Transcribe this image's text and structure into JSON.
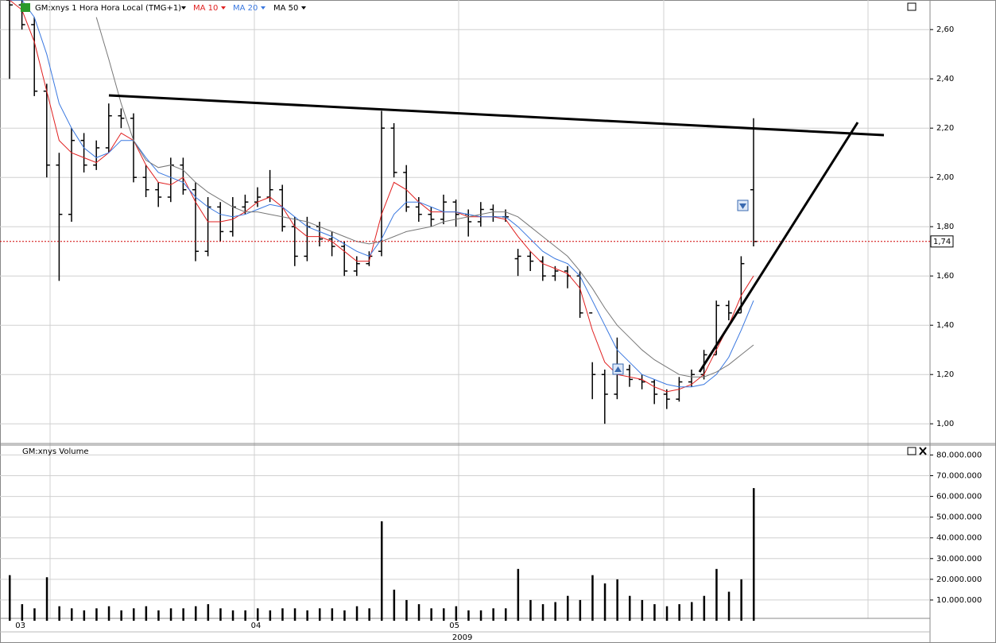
{
  "chart_data": [
    {
      "type": "ohlc",
      "title": "GM:xnys 1 Hora Hora Local (TMG+1)",
      "year_label": "2009",
      "categories": [
        null,
        "03",
        null,
        null,
        null,
        null,
        null,
        null,
        null,
        null,
        null,
        null,
        null,
        null,
        null,
        null,
        null,
        null,
        null,
        null,
        "04",
        null,
        null,
        null,
        null,
        null,
        null,
        null,
        null,
        null,
        null,
        null,
        null,
        null,
        null,
        null,
        "05",
        null,
        null,
        null,
        null,
        null,
        null,
        null,
        null,
        null,
        null,
        null,
        null,
        null,
        null,
        null,
        null,
        null,
        null,
        null,
        null,
        null,
        null,
        null,
        null
      ],
      "ohlc": {
        "open": [
          2.72,
          2.7,
          2.62,
          2.35,
          2.05,
          1.85,
          2.15,
          2.05,
          2.12,
          2.25,
          2.24,
          2.0,
          1.95,
          1.92,
          2.05,
          1.95,
          1.7,
          1.88,
          1.78,
          1.88,
          1.9,
          1.92,
          1.95,
          1.8,
          1.68,
          1.8,
          1.75,
          1.72,
          1.62,
          1.65,
          1.7,
          2.2,
          2.02,
          1.88,
          1.85,
          1.83,
          1.9,
          1.85,
          1.82,
          1.87,
          1.84,
          1.67,
          1.68,
          1.66,
          1.6,
          1.62,
          1.6,
          1.45,
          1.2,
          1.12,
          1.22,
          1.18,
          1.17,
          1.12,
          1.1,
          1.17,
          1.2,
          1.28,
          1.48,
          1.45,
          1.95
        ],
        "high": [
          2.72,
          2.72,
          2.65,
          2.38,
          2.1,
          2.2,
          2.18,
          2.15,
          2.3,
          2.28,
          2.26,
          2.05,
          1.98,
          2.08,
          2.08,
          1.98,
          1.92,
          1.9,
          1.92,
          1.93,
          1.96,
          2.03,
          1.97,
          1.84,
          1.84,
          1.82,
          1.78,
          1.74,
          1.68,
          1.7,
          2.27,
          2.22,
          2.05,
          1.92,
          1.88,
          1.93,
          1.91,
          1.87,
          1.9,
          1.89,
          1.87,
          1.71,
          1.7,
          1.68,
          1.64,
          1.64,
          1.62,
          1.25,
          1.22,
          1.35,
          1.24,
          1.2,
          1.18,
          1.14,
          1.19,
          1.22,
          1.3,
          1.5,
          1.5,
          1.68,
          2.24
        ],
        "low": [
          2.4,
          2.6,
          2.33,
          2.0,
          1.58,
          1.82,
          2.02,
          2.03,
          2.1,
          2.2,
          1.98,
          1.92,
          1.88,
          1.9,
          1.93,
          1.66,
          1.68,
          1.74,
          1.76,
          1.85,
          1.88,
          1.9,
          1.78,
          1.64,
          1.66,
          1.72,
          1.68,
          1.6,
          1.6,
          1.64,
          1.68,
          2.0,
          1.86,
          1.82,
          1.8,
          1.81,
          1.8,
          1.76,
          1.8,
          1.82,
          1.82,
          1.6,
          1.62,
          1.58,
          1.58,
          1.55,
          1.43,
          1.1,
          1.0,
          1.1,
          1.15,
          1.14,
          1.08,
          1.06,
          1.09,
          1.15,
          1.18,
          1.28,
          1.42,
          1.45,
          1.72
        ],
        "close": [
          2.7,
          2.62,
          2.35,
          2.05,
          1.85,
          2.15,
          2.05,
          2.12,
          2.25,
          2.24,
          2.0,
          1.95,
          1.92,
          2.05,
          1.95,
          1.7,
          1.88,
          1.78,
          1.88,
          1.9,
          1.92,
          1.95,
          1.8,
          1.68,
          1.8,
          1.75,
          1.72,
          1.62,
          1.65,
          1.68,
          2.2,
          2.02,
          1.88,
          1.85,
          1.83,
          1.9,
          1.85,
          1.82,
          1.87,
          1.84,
          1.84,
          1.68,
          1.66,
          1.6,
          1.62,
          1.6,
          1.45,
          1.2,
          1.12,
          1.22,
          1.18,
          1.17,
          1.12,
          1.1,
          1.17,
          1.2,
          1.28,
          1.48,
          1.45,
          1.65,
          1.74
        ]
      },
      "color": "#000000",
      "series": [
        {
          "name": "MA 10",
          "color": "#e02020",
          "values": [
            2.72,
            2.68,
            2.55,
            2.35,
            2.15,
            2.1,
            2.08,
            2.06,
            2.1,
            2.18,
            2.15,
            2.05,
            1.98,
            1.97,
            2.0,
            1.9,
            1.82,
            1.82,
            1.83,
            1.86,
            1.9,
            1.92,
            1.88,
            1.8,
            1.76,
            1.76,
            1.74,
            1.7,
            1.66,
            1.66,
            1.85,
            1.98,
            1.95,
            1.9,
            1.86,
            1.86,
            1.86,
            1.84,
            1.84,
            1.84,
            1.83,
            1.76,
            1.7,
            1.65,
            1.63,
            1.61,
            1.55,
            1.38,
            1.25,
            1.2,
            1.19,
            1.18,
            1.15,
            1.13,
            1.14,
            1.16,
            1.2,
            1.3,
            1.4,
            1.52,
            1.6
          ]
        },
        {
          "name": "MA 20",
          "color": "#3a78e0",
          "values": [
            2.72,
            2.72,
            2.65,
            2.5,
            2.3,
            2.2,
            2.12,
            2.08,
            2.1,
            2.15,
            2.15,
            2.08,
            2.02,
            2.0,
            1.98,
            1.92,
            1.88,
            1.85,
            1.84,
            1.85,
            1.87,
            1.89,
            1.88,
            1.84,
            1.8,
            1.78,
            1.76,
            1.73,
            1.7,
            1.68,
            1.75,
            1.85,
            1.9,
            1.9,
            1.88,
            1.86,
            1.86,
            1.85,
            1.84,
            1.84,
            1.84,
            1.8,
            1.75,
            1.7,
            1.67,
            1.65,
            1.6,
            1.5,
            1.4,
            1.3,
            1.25,
            1.2,
            1.18,
            1.16,
            1.15,
            1.15,
            1.16,
            1.2,
            1.27,
            1.38,
            1.5
          ]
        },
        {
          "name": "MA 50",
          "color": "#777777",
          "values": [
            null,
            null,
            null,
            null,
            null,
            null,
            null,
            2.65,
            2.48,
            2.3,
            2.15,
            2.07,
            2.04,
            2.05,
            2.03,
            1.98,
            1.94,
            1.91,
            1.88,
            1.86,
            1.86,
            1.85,
            1.84,
            1.83,
            1.82,
            1.8,
            1.78,
            1.76,
            1.74,
            1.73,
            1.74,
            1.76,
            1.78,
            1.79,
            1.8,
            1.82,
            1.83,
            1.84,
            1.85,
            1.86,
            1.86,
            1.84,
            1.8,
            1.76,
            1.72,
            1.68,
            1.62,
            1.55,
            1.47,
            1.4,
            1.35,
            1.3,
            1.26,
            1.23,
            1.2,
            1.19,
            1.19,
            1.21,
            1.24,
            1.28,
            1.32
          ]
        }
      ],
      "last": {
        "value": 1.74,
        "label": "1,74"
      },
      "ylim": [
        0.92,
        2.72
      ],
      "yticks": [
        {
          "value": 1,
          "label": "1,00"
        },
        {
          "value": 1.2,
          "label": "1,20"
        },
        {
          "value": 1.4,
          "label": "1,40"
        },
        {
          "value": 1.6,
          "label": "1,60"
        },
        {
          "value": 1.8,
          "label": "1,80"
        },
        {
          "value": 2,
          "label": "2,00"
        },
        {
          "value": 2.2,
          "label": "2,20"
        },
        {
          "value": 2.4,
          "label": "2,40"
        },
        {
          "value": 2.6,
          "label": "2,60"
        }
      ],
      "grid": true
    },
    {
      "type": "bar",
      "title": "GM:xnys Volume",
      "color": "#000000",
      "values": [
        22000000,
        8000000,
        6000000,
        21000000,
        7000000,
        6000000,
        5000000,
        6000000,
        7000000,
        5000000,
        6000000,
        7000000,
        5000000,
        6000000,
        6000000,
        7000000,
        8000000,
        6000000,
        5000000,
        5000000,
        6000000,
        5000000,
        6000000,
        6000000,
        5000000,
        6000000,
        6000000,
        5000000,
        7000000,
        6000000,
        48000000,
        15000000,
        10000000,
        8000000,
        6000000,
        6000000,
        7000000,
        5000000,
        5000000,
        6000000,
        6000000,
        25000000,
        10000000,
        8000000,
        9000000,
        12000000,
        10000000,
        22000000,
        18000000,
        20000000,
        12000000,
        10000000,
        8000000,
        7000000,
        8000000,
        9000000,
        12000000,
        25000000,
        14000000,
        20000000,
        64000000
      ],
      "ylim": [
        0,
        84000000
      ],
      "yticks": [
        {
          "value": 10000000,
          "label": "10.000.000"
        },
        {
          "value": 20000000,
          "label": "20.000.000"
        },
        {
          "value": 30000000,
          "label": "30.000.000"
        },
        {
          "value": 40000000,
          "label": "40.000.000"
        },
        {
          "value": 50000000,
          "label": "50.000.000"
        },
        {
          "value": 60000000,
          "label": "60.000.000"
        },
        {
          "value": 70000000,
          "label": "70.000.000"
        },
        {
          "value": 80000000,
          "label": "80.000.000"
        }
      ],
      "grid": true
    }
  ]
}
